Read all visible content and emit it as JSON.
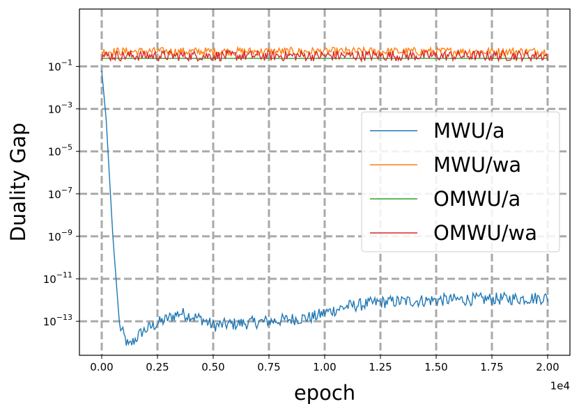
{
  "chart_data": {
    "type": "line",
    "title": "",
    "xlabel": "epoch",
    "ylabel": "Duality Gap",
    "x_offset_text": "1e4",
    "xlim": [
      -0.1,
      2.1
    ],
    "ylim_log10": [
      -14.6,
      1.7
    ],
    "yscale": "log",
    "x_ticks": [
      0.0,
      0.25,
      0.5,
      0.75,
      1.0,
      1.25,
      1.5,
      1.75,
      2.0
    ],
    "x_tick_labels": [
      "0.00",
      "0.25",
      "0.50",
      "0.75",
      "1.00",
      "1.25",
      "1.50",
      "1.75",
      "2.00"
    ],
    "y_ticks_log10": [
      -1,
      -3,
      -5,
      -7,
      -9,
      -11,
      -13
    ],
    "y_tick_labels": [
      "10",
      "10",
      "10",
      "10",
      "10",
      "10",
      "10"
    ],
    "y_tick_exponents": [
      "−1",
      "−3",
      "−5",
      "−7",
      "−9",
      "−11",
      "−13"
    ],
    "grid": true,
    "grid_style": "dashed",
    "legend_position": "center-right",
    "series": [
      {
        "name": "MWU/a",
        "color": "#1f77b4",
        "x_scale": "1e4",
        "key_points_log10": [
          [
            0.0,
            -1.2
          ],
          [
            0.02,
            -3.5
          ],
          [
            0.05,
            -9.0
          ],
          [
            0.08,
            -13.2
          ],
          [
            0.12,
            -14.2
          ],
          [
            0.18,
            -13.5
          ],
          [
            0.25,
            -13.1
          ],
          [
            0.35,
            -12.6
          ],
          [
            0.45,
            -12.9
          ],
          [
            0.5,
            -13.2
          ],
          [
            0.75,
            -13.0
          ],
          [
            0.95,
            -12.8
          ],
          [
            1.0,
            -12.6
          ],
          [
            1.1,
            -12.3
          ],
          [
            1.25,
            -12.1
          ],
          [
            1.5,
            -12.0
          ],
          [
            1.75,
            -11.95
          ],
          [
            2.0,
            -11.9
          ]
        ],
        "noise_amplitude_log10": 0.3
      },
      {
        "name": "MWU/wa",
        "color": "#ff7f0e",
        "x_scale": "1e4",
        "key_points_log10": [
          [
            0.0,
            -0.3
          ],
          [
            2.0,
            -0.3
          ]
        ],
        "noise_amplitude_log10": 0.2
      },
      {
        "name": "OMWU/a",
        "color": "#2ca02c",
        "x_scale": "1e4",
        "key_points_log10": [
          [
            0.0,
            -0.62
          ],
          [
            2.0,
            -0.62
          ]
        ],
        "noise_amplitude_log10": 0.0
      },
      {
        "name": "OMWU/wa",
        "color": "#d62728",
        "x_scale": "1e4",
        "key_points_log10": [
          [
            0.0,
            -0.5
          ],
          [
            2.0,
            -0.5
          ]
        ],
        "noise_amplitude_log10": 0.25
      }
    ]
  }
}
